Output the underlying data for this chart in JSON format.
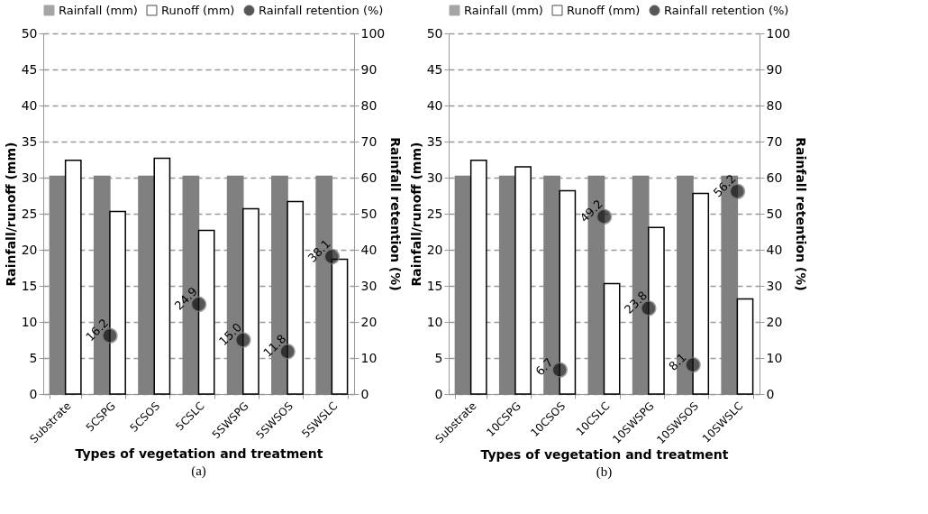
{
  "chart_data": [
    {
      "type": "bar",
      "categories": [
        "Substrate",
        "5CSPG",
        "5CSOS",
        "5CSLC",
        "5SWSPG",
        "5SWSOS",
        "5SWSLC"
      ],
      "xlabel": "Types of vegetation and treatment",
      "ylabel": "Rainfall/runoff (mm)",
      "y2label": "Rainfall retention (%)",
      "ylim": [
        0,
        50
      ],
      "yticks": [
        0,
        5,
        10,
        15,
        20,
        25,
        30,
        35,
        40,
        45,
        50
      ],
      "y2lim": [
        0,
        100
      ],
      "y2ticks": [
        0,
        10,
        20,
        30,
        40,
        50,
        60,
        70,
        80,
        90,
        100
      ],
      "grid": "y",
      "legend": "top",
      "marker": "circle",
      "annotations": [
        "(a)"
      ],
      "series": [
        {
          "name": "Rainfall (mm)",
          "color": "#808080",
          "values": [
            30.2,
            30.2,
            30.2,
            30.2,
            30.2,
            30.2,
            30.2
          ]
        },
        {
          "name": "Runoff (mm)",
          "color": "#ffffff",
          "values": [
            32.4,
            25.3,
            32.7,
            22.7,
            25.7,
            26.7,
            18.7
          ]
        },
        {
          "name": "Rainfall retention (%)",
          "type": "scatter",
          "axis": "y2",
          "color": "#111111",
          "values": [
            null,
            16.2,
            null,
            24.9,
            15.0,
            11.8,
            38.1
          ],
          "value_labels": [
            null,
            "16.2",
            null,
            "24.9",
            "15.0",
            "11.8",
            "38.1"
          ]
        }
      ]
    },
    {
      "type": "bar",
      "categories": [
        "Substrate",
        "10CSPG",
        "10CSOS",
        "10CSLC",
        "10SWSPG",
        "10SWSOS",
        "10SWSLC"
      ],
      "xlabel": "Types of vegetation and treatment",
      "ylabel": "Rainfall/runoff (mm)",
      "y2label": "Rainfall retention (%)",
      "ylim": [
        0,
        50
      ],
      "yticks": [
        0,
        5,
        10,
        15,
        20,
        25,
        30,
        35,
        40,
        45,
        50
      ],
      "y2lim": [
        0,
        100
      ],
      "y2ticks": [
        0,
        10,
        20,
        30,
        40,
        50,
        60,
        70,
        80,
        90,
        100
      ],
      "grid": "y",
      "legend": "top",
      "marker": "circle",
      "annotations": [
        "(b)"
      ],
      "series": [
        {
          "name": "Rainfall (mm)",
          "color": "#808080",
          "values": [
            30.2,
            30.2,
            30.2,
            30.2,
            30.2,
            30.2,
            30.2
          ]
        },
        {
          "name": "Runoff (mm)",
          "color": "#ffffff",
          "values": [
            32.4,
            31.5,
            28.2,
            15.3,
            23.1,
            27.8,
            13.2
          ]
        },
        {
          "name": "Rainfall retention (%)",
          "type": "scatter",
          "axis": "y2",
          "color": "#111111",
          "values": [
            null,
            null,
            6.7,
            49.2,
            23.8,
            8.1,
            56.2
          ],
          "value_labels": [
            null,
            null,
            "6.7",
            "49.2",
            "23.8",
            "8.1",
            "56.2"
          ]
        }
      ]
    }
  ]
}
